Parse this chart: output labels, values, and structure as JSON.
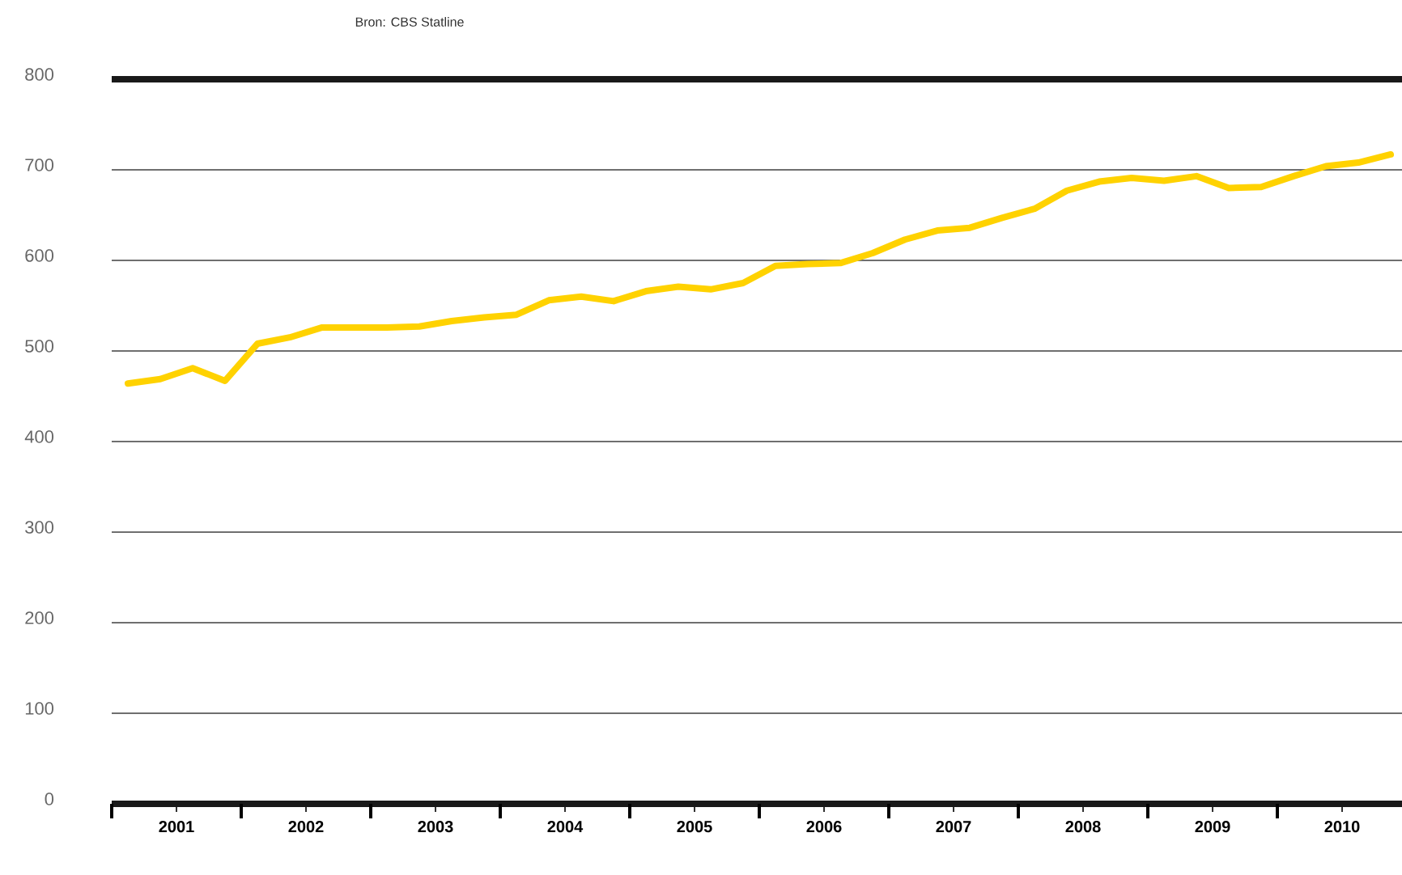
{
  "chart_data": {
    "type": "line",
    "annotations": [
      "Bron: CBS Statline"
    ],
    "x": [
      2001.125,
      2001.375,
      2001.625,
      2001.875,
      2002.125,
      2002.375,
      2002.625,
      2002.875,
      2003.125,
      2003.375,
      2003.625,
      2003.875,
      2004.125,
      2004.375,
      2004.625,
      2004.875,
      2005.125,
      2005.375,
      2005.625,
      2005.875,
      2006.125,
      2006.375,
      2006.625,
      2006.875,
      2007.125,
      2007.375,
      2007.625,
      2007.875,
      2008.125,
      2008.375,
      2008.625,
      2008.875,
      2009.125,
      2009.375,
      2009.625,
      2009.875,
      2010.125,
      2010.375,
      2010.625,
      2010.875
    ],
    "series": [
      {
        "color": "#ffd200",
        "values": [
          464,
          469,
          481,
          467,
          508,
          515,
          526,
          526,
          526,
          527,
          533,
          537,
          540,
          556,
          560,
          555,
          566,
          571,
          568,
          575,
          594,
          596,
          597,
          608,
          623,
          633,
          636,
          647,
          657,
          677,
          687,
          691,
          688,
          693,
          680,
          681,
          693,
          704,
          708,
          717
        ]
      }
    ],
    "xlim": [
      2001,
      2011
    ],
    "xticks": [
      {
        "value": 2001,
        "label": null
      },
      {
        "value": 2001.5,
        "label": "2001"
      },
      {
        "value": 2002,
        "label": null
      },
      {
        "value": 2002.5,
        "label": "2002"
      },
      {
        "value": 2003,
        "label": null
      },
      {
        "value": 2003.5,
        "label": "2003"
      },
      {
        "value": 2004,
        "label": null
      },
      {
        "value": 2004.5,
        "label": "2004"
      },
      {
        "value": 2005,
        "label": null
      },
      {
        "value": 2005.5,
        "label": "2005"
      },
      {
        "value": 2006,
        "label": null
      },
      {
        "value": 2006.5,
        "label": "2006"
      },
      {
        "value": 2007,
        "label": null
      },
      {
        "value": 2007.5,
        "label": "2007"
      },
      {
        "value": 2008,
        "label": null
      },
      {
        "value": 2008.5,
        "label": "2008"
      },
      {
        "value": 2009,
        "label": null
      },
      {
        "value": 2009.5,
        "label": "2009"
      },
      {
        "value": 2010,
        "label": null
      },
      {
        "value": 2010.5,
        "label": "2010"
      },
      {
        "value": 2011,
        "label": null
      }
    ],
    "ylim": [
      0,
      800
    ],
    "yticks": [
      0,
      100,
      200,
      300,
      400,
      500,
      600,
      700,
      800
    ],
    "grid": "y",
    "marker": "none",
    "line_style": "solid"
  }
}
